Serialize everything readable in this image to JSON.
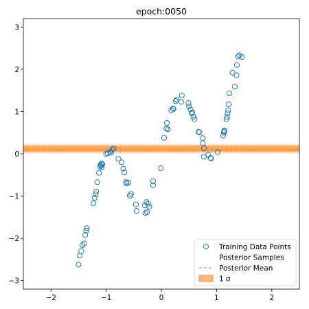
{
  "chart_data": {
    "type": "scatter",
    "title": "epoch:0050",
    "xlabel": "",
    "ylabel": "",
    "xlim": [
      -2.5,
      2.5
    ],
    "ylim": [
      -3.2,
      3.2
    ],
    "xticks": [
      -2,
      -1,
      0,
      1,
      2
    ],
    "yticks": [
      -3,
      -2,
      -1,
      0,
      1,
      2,
      3
    ],
    "xtick_labels": [
      "−2",
      "−1",
      "0",
      "1",
      "2"
    ],
    "ytick_labels": [
      "−3",
      "−2",
      "−1",
      "0",
      "1",
      "2",
      "3"
    ],
    "grid": false,
    "legend_position": "lower-right",
    "colors": {
      "points": "#1f77b4",
      "mean": "#ff7f0e",
      "band": "#ff7f0e",
      "samples": "#7f7f7f"
    },
    "band": {
      "center": 0.12,
      "sigma1": [
        0.05,
        0.19
      ],
      "outer": [
        0.0,
        0.24
      ]
    },
    "mean": {
      "y": 0.1
    },
    "series": [
      {
        "name": "Training Data Points",
        "x": [
          -1.5,
          -1.48,
          -1.45,
          -1.43,
          -1.4,
          -1.38,
          -1.36,
          -1.35,
          -1.23,
          -1.21,
          -1.19,
          -1.18,
          -1.16,
          -1.13,
          -1.11,
          -1.1,
          -1.09,
          -1.08,
          -1.08,
          -1.07,
          -1.0,
          -0.97,
          -0.93,
          -0.91,
          -0.89,
          -0.86,
          -0.78,
          -0.72,
          -0.69,
          -0.67,
          -0.64,
          -0.63,
          -0.6,
          -0.57,
          -0.55,
          -0.46,
          -0.45,
          -0.3,
          -0.29,
          -0.27,
          -0.26,
          -0.24,
          -0.22,
          -0.15,
          -0.15,
          -0.01,
          0.05,
          0.09,
          0.1,
          0.12,
          0.18,
          0.21,
          0.22,
          0.26,
          0.28,
          0.36,
          0.37,
          0.49,
          0.5,
          0.53,
          0.55,
          0.56,
          0.58,
          0.6,
          0.67,
          0.69,
          0.75,
          0.75,
          0.77,
          0.77,
          0.85,
          0.89,
          0.9,
          1.02,
          1.12,
          1.13,
          1.14,
          1.14,
          1.18,
          1.19,
          1.2,
          1.21,
          1.22,
          1.23,
          1.29,
          1.33,
          1.36,
          1.37,
          1.39,
          1.41,
          1.46
        ],
        "y": [
          -2.62,
          -2.41,
          -2.3,
          -2.16,
          -2.12,
          -1.92,
          -1.82,
          -1.76,
          -1.17,
          -1.04,
          -0.96,
          -0.89,
          -0.67,
          -0.45,
          -0.3,
          -0.26,
          -0.28,
          -0.23,
          -0.32,
          -0.25,
          0.0,
          0.01,
          0.05,
          0.03,
          0.1,
          0.13,
          -0.12,
          -0.2,
          -0.35,
          -0.44,
          -0.67,
          -0.7,
          -0.68,
          -0.99,
          -0.95,
          -1.2,
          -1.35,
          -1.22,
          -1.4,
          -1.14,
          -1.38,
          -1.18,
          -1.25,
          -0.74,
          -0.65,
          -0.34,
          0.38,
          0.6,
          0.73,
          0.58,
          1.03,
          1.07,
          1.06,
          1.25,
          1.28,
          1.23,
          1.38,
          1.2,
          1.12,
          1.05,
          0.96,
          0.98,
          0.88,
          0.82,
          0.52,
          0.51,
          0.37,
          0.25,
          0.13,
          -0.07,
          -0.02,
          -0.1,
          -0.11,
          0.04,
          0.43,
          0.5,
          0.55,
          0.53,
          0.82,
          0.87,
          0.96,
          1.03,
          1.17,
          1.43,
          1.92,
          1.59,
          1.86,
          2.1,
          2.3,
          2.33,
          2.29
        ]
      }
    ],
    "legend": [
      {
        "label": "Training Data Points",
        "kind": "marker"
      },
      {
        "label": "Posterior Samples",
        "kind": "samples"
      },
      {
        "label": "Posterior Mean",
        "kind": "dashed"
      },
      {
        "label": "1 σ",
        "kind": "patch"
      }
    ]
  }
}
